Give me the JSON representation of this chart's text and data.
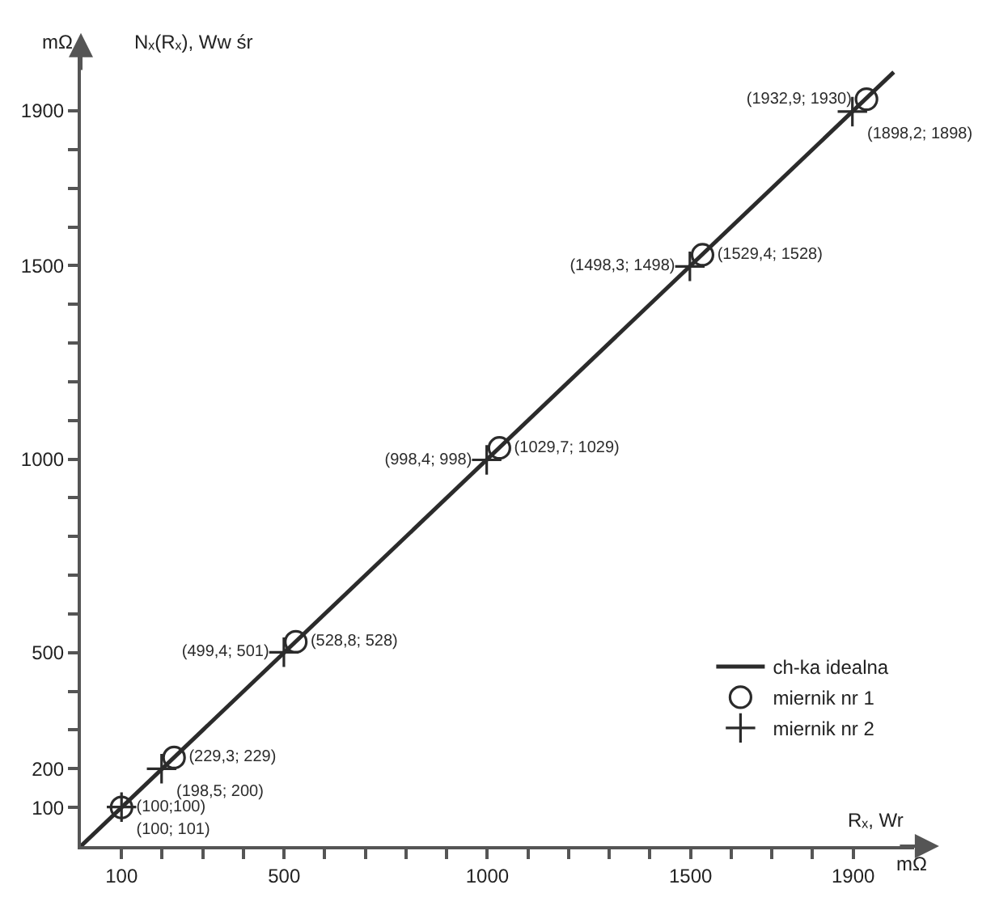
{
  "chart_data": {
    "type": "scatter",
    "xlabel": "Rₓ, Wr",
    "ylabel": "Nₓ(Rₓ), Ww śr",
    "annotations": [
      "mΩ",
      "mΩ"
    ],
    "xlim": [
      0,
      2050
    ],
    "ylim": [
      0,
      2040
    ],
    "xticks": [
      {
        "value": 100,
        "label": "100"
      },
      {
        "value": 200,
        "label": null
      },
      {
        "value": 300,
        "label": null
      },
      {
        "value": 400,
        "label": null
      },
      {
        "value": 500,
        "label": "500"
      },
      {
        "value": 600,
        "label": null
      },
      {
        "value": 700,
        "label": null
      },
      {
        "value": 800,
        "label": null
      },
      {
        "value": 900,
        "label": null
      },
      {
        "value": 1000,
        "label": "1000"
      },
      {
        "value": 1100,
        "label": null
      },
      {
        "value": 1200,
        "label": null
      },
      {
        "value": 1300,
        "label": null
      },
      {
        "value": 1400,
        "label": null
      },
      {
        "value": 1500,
        "label": "1500"
      },
      {
        "value": 1600,
        "label": null
      },
      {
        "value": 1700,
        "label": null
      },
      {
        "value": 1800,
        "label": null
      },
      {
        "value": 1900,
        "label": "1900"
      }
    ],
    "yticks": [
      100,
      200,
      {
        "value": 300,
        "label": null
      },
      {
        "value": 400,
        "label": null
      },
      500,
      {
        "value": 600,
        "label": null
      },
      {
        "value": 700,
        "label": null
      },
      {
        "value": 800,
        "label": null
      },
      {
        "value": 900,
        "label": null
      },
      1000,
      {
        "value": 1100,
        "label": null
      },
      {
        "value": 1200,
        "label": null
      },
      {
        "value": 1300,
        "label": null
      },
      {
        "value": 1400,
        "label": null
      },
      1500,
      {
        "value": 1600,
        "label": null
      },
      {
        "value": 1700,
        "label": null
      },
      {
        "value": 1800,
        "label": null
      },
      1900
    ],
    "legend": "bottom right",
    "series": [
      {
        "name": "ch-ka idealna",
        "type": "line",
        "color": "#2b2b2b",
        "marker": "none",
        "line_style": "solid",
        "x": [
          0,
          2000
        ],
        "values": [
          0,
          2000
        ]
      },
      {
        "name": "miernik nr 1",
        "color": "#2b2b2b",
        "marker": "circle",
        "x": [
          100,
          229.3,
          528.8,
          1029.7,
          1529.4,
          1932.9
        ],
        "values": [
          100,
          229,
          528,
          1029,
          1528,
          1930
        ],
        "value_labels": [
          "(100;100)",
          "(229,3; 229)",
          "(528,8; 528)",
          "(1029,7; 1029)",
          "(1529,4; 1528)",
          "(1932,9; 1930)"
        ]
      },
      {
        "name": "miernik nr 2",
        "color": "#2b2b2b",
        "marker": "cross",
        "x": [
          100,
          198.5,
          499.4,
          998.4,
          1498.3,
          1898.2
        ],
        "values": [
          101,
          200,
          501,
          998,
          1498,
          1898
        ],
        "value_labels": [
          "(100; 101)",
          "(198,5; 200)",
          "(499,4; 501)",
          "(998,4; 998)",
          "(1498,3; 1498)",
          "(1898,2; 1898)"
        ]
      }
    ]
  }
}
